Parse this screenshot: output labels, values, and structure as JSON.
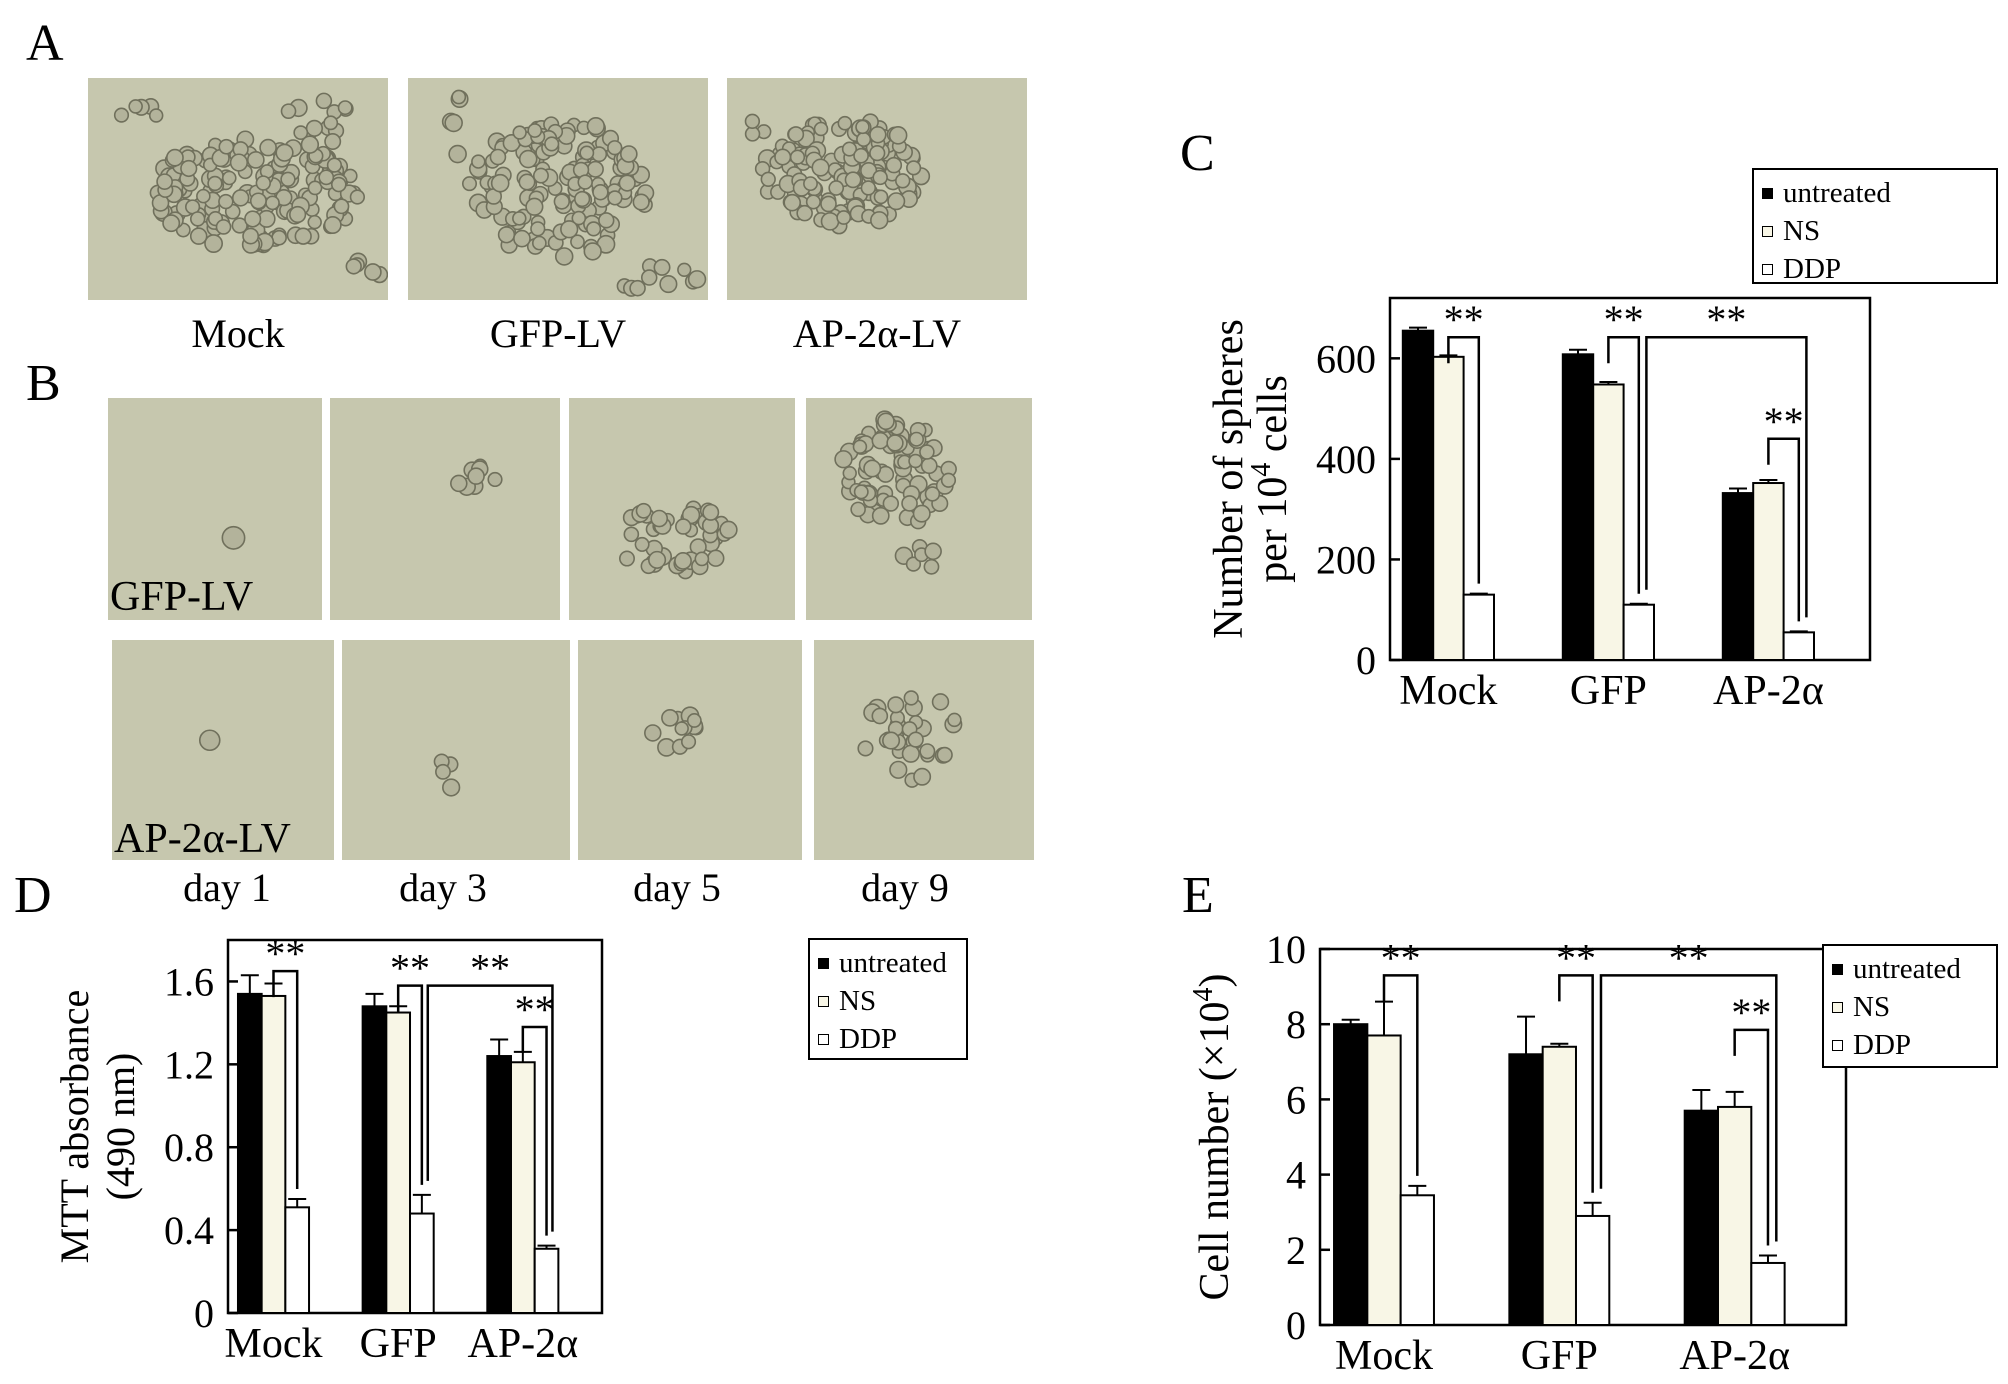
{
  "labels": {
    "A": "A",
    "B": "B",
    "C": "C",
    "D": "D",
    "E": "E",
    "a_captions": [
      "Mock",
      "GFP-LV",
      "AP-2α-LV"
    ],
    "b_rows": [
      "GFP-LV",
      "AP-2α-LV"
    ],
    "b_days": [
      "day 1",
      "day 3",
      "day 5",
      "day 9"
    ]
  },
  "colors": {
    "photo_bg": "#c6c7ae",
    "cell_fill": "#b3b39b",
    "cell_edge": "#70705c",
    "untreated": "#000000",
    "ns": "#f8f6e6",
    "ddp": "#ffffff"
  },
  "chart_data": [
    {
      "panel": "C",
      "type": "bar",
      "categories": [
        "Mock",
        "GFP",
        "AP-2α"
      ],
      "series": [
        {
          "name": "untreated",
          "values": [
            655,
            608,
            332
          ],
          "errors": [
            6,
            9,
            9
          ]
        },
        {
          "name": "NS",
          "values": [
            603,
            548,
            352
          ],
          "errors": [
            3,
            5,
            6
          ]
        },
        {
          "name": "DDP",
          "values": [
            130,
            110,
            55
          ],
          "errors": [
            2,
            2,
            2
          ]
        }
      ],
      "ylabel": [
        "Number of spheres",
        "per 10",
        "4",
        " cells"
      ],
      "ylim": [
        0,
        720
      ],
      "yticks": [
        0,
        200,
        400,
        600
      ],
      "ytick_labels": [
        "0",
        "200",
        "400",
        "600"
      ],
      "legend": "top-right, outside plot",
      "significance": [
        {
          "type": "within",
          "cat": 0,
          "y": 642,
          "label": "**"
        },
        {
          "type": "within",
          "cat": 1,
          "y": 642,
          "label": "**"
        },
        {
          "type": "across",
          "from_cat": 1,
          "to_cat": 2,
          "y": 642,
          "label": "**"
        },
        {
          "type": "within",
          "cat": 2,
          "y": 440,
          "label": "**"
        }
      ]
    },
    {
      "panel": "D",
      "type": "bar",
      "categories": [
        "Mock",
        "GFP",
        "AP-2α"
      ],
      "series": [
        {
          "name": "untreated",
          "values": [
            1.54,
            1.48,
            1.24
          ],
          "errors": [
            0.09,
            0.06,
            0.08
          ]
        },
        {
          "name": "NS",
          "values": [
            1.53,
            1.45,
            1.21
          ],
          "errors": [
            0.06,
            0.03,
            0.05
          ]
        },
        {
          "name": "DDP",
          "values": [
            0.51,
            0.48,
            0.31
          ],
          "errors": [
            0.04,
            0.09,
            0.015
          ]
        }
      ],
      "ylabel": [
        "MTT absorbance",
        "(490 nm)"
      ],
      "ylim": [
        0,
        1.8
      ],
      "yticks": [
        0,
        0.4,
        0.8,
        1.2,
        1.6
      ],
      "ytick_labels": [
        "0",
        "0.4",
        "0.8",
        "1.2",
        "1.6"
      ],
      "legend": "top-right, outside plot",
      "significance": [
        {
          "type": "within",
          "cat": 0,
          "y": 1.65,
          "label": "**"
        },
        {
          "type": "within",
          "cat": 1,
          "y": 1.58,
          "label": "**"
        },
        {
          "type": "across",
          "from_cat": 1,
          "to_cat": 2,
          "y": 1.58,
          "label": "**"
        },
        {
          "type": "within",
          "cat": 2,
          "y": 1.38,
          "label": "**"
        }
      ]
    },
    {
      "panel": "E",
      "type": "bar",
      "categories": [
        "Mock",
        "GFP",
        "AP-2α"
      ],
      "series": [
        {
          "name": "untreated",
          "values": [
            8.0,
            7.2,
            5.7
          ],
          "errors": [
            0.12,
            1.0,
            0.55
          ]
        },
        {
          "name": "NS",
          "values": [
            7.7,
            7.4,
            5.8
          ],
          "errors": [
            0.9,
            0.08,
            0.4
          ]
        },
        {
          "name": "DDP",
          "values": [
            3.45,
            2.9,
            1.65
          ],
          "errors": [
            0.25,
            0.35,
            0.2
          ]
        }
      ],
      "ylabel": [
        "Cell number (×10",
        "4",
        ")"
      ],
      "ylim": [
        0,
        10
      ],
      "yticks": [
        0,
        2,
        4,
        6,
        8,
        10
      ],
      "ytick_labels": [
        "0",
        "2",
        "4",
        "6",
        "8",
        "10"
      ],
      "legend": "top-right, outside plot",
      "significance": [
        {
          "type": "within",
          "cat": 0,
          "y": 9.3,
          "label": "**"
        },
        {
          "type": "within",
          "cat": 1,
          "y": 9.3,
          "label": "**"
        },
        {
          "type": "across",
          "from_cat": 1,
          "to_cat": 2,
          "y": 9.3,
          "label": "**"
        },
        {
          "type": "within",
          "cat": 2,
          "y": 7.85,
          "label": "**"
        }
      ]
    }
  ]
}
